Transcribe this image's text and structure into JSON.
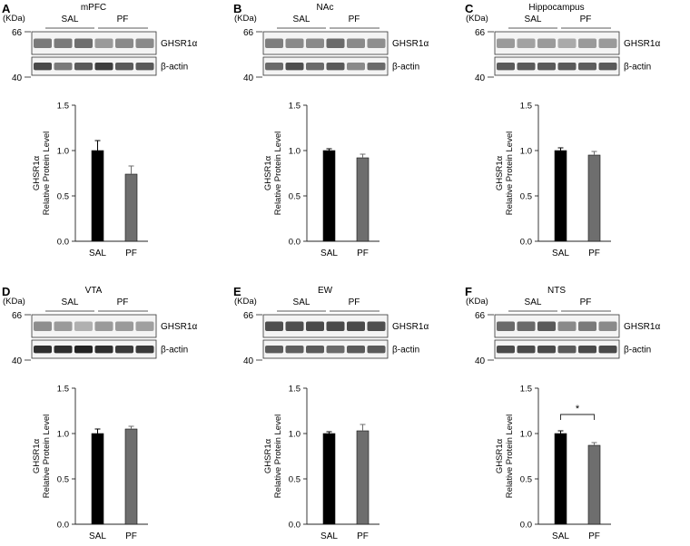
{
  "panels": [
    {
      "letter": "A",
      "region": "mPFC",
      "blot_lanes": {
        "ghsr": [
          "#7a7a7a",
          "#7a7a7a",
          "#6e6e6e",
          "#9a9a9a",
          "#8a8a8a",
          "#8a8a8a"
        ],
        "actin": [
          "#4a4a4a",
          "#7a7a7a",
          "#5a5a5a",
          "#3e3e3e",
          "#5a5a5a",
          "#5a5a5a"
        ]
      }
    },
    {
      "letter": "B",
      "region": "NAc",
      "blot_lanes": {
        "ghsr": [
          "#7e7e7e",
          "#8a8a8a",
          "#8a8a8a",
          "#6a6a6a",
          "#8a8a8a",
          "#8e8e8e"
        ],
        "actin": [
          "#6a6a6a",
          "#4e4e4e",
          "#6a6a6a",
          "#5a5a5a",
          "#8a8a8a",
          "#6a6a6a"
        ]
      }
    },
    {
      "letter": "C",
      "region": "Hippocampus",
      "blot_lanes": {
        "ghsr": [
          "#9a9a9a",
          "#a2a2a2",
          "#9a9a9a",
          "#aaaaaa",
          "#9a9a9a",
          "#9a9a9a"
        ],
        "actin": [
          "#5a5a5a",
          "#5a5a5a",
          "#5a5a5a",
          "#5a5a5a",
          "#5e5e5e",
          "#5a5a5a"
        ]
      }
    },
    {
      "letter": "D",
      "region": "VTA",
      "blot_lanes": {
        "ghsr": [
          "#8e8e8e",
          "#9a9a9a",
          "#b0b0b0",
          "#9a9a9a",
          "#9a9a9a",
          "#a0a0a0"
        ],
        "actin": [
          "#2e2e2e",
          "#2e2e2e",
          "#222222",
          "#2e2e2e",
          "#3a3a3a",
          "#3a3a3a"
        ]
      }
    },
    {
      "letter": "E",
      "region": "EW",
      "blot_lanes": {
        "ghsr": [
          "#4e4e4e",
          "#4e4e4e",
          "#4a4a4a",
          "#4a4a4a",
          "#4a4a4a",
          "#4e4e4e"
        ],
        "actin": [
          "#5a5a5a",
          "#5e5e5e",
          "#5a5a5a",
          "#6a6a6a",
          "#5a5a5a",
          "#5a5a5a"
        ]
      }
    },
    {
      "letter": "F",
      "region": "NTS",
      "blot_lanes": {
        "ghsr": [
          "#6a6a6a",
          "#6a6a6a",
          "#5a5a5a",
          "#8a8a8a",
          "#7a7a7a",
          "#8a8a8a"
        ],
        "actin": [
          "#4a4a4a",
          "#4a4a4a",
          "#4a4a4a",
          "#5a5a5a",
          "#4a4a4a",
          "#4a4a4a"
        ]
      }
    }
  ],
  "blot_labels": {
    "kda": "(KDa)",
    "mw_high": "66",
    "mw_low": "40",
    "band_top": "GHSR1α",
    "band_bottom": "β-actin",
    "group_1": "SAL",
    "group_2": "PF"
  },
  "colors": {
    "SAL": "#000000",
    "PF": "#6e6e6e"
  },
  "chart_data": [
    {
      "type": "bar",
      "title": "mPFC",
      "categories": [
        "SAL",
        "PF"
      ],
      "values": [
        1.0,
        0.74
      ],
      "errors": [
        0.11,
        0.09
      ],
      "ylabel": [
        "GHSR1α",
        "Relative Protein Level"
      ],
      "ylim": [
        0,
        1.5
      ],
      "yticks": [
        "0.0",
        "0.5",
        "1.0",
        "1.5"
      ],
      "significance": null
    },
    {
      "type": "bar",
      "title": "NAc",
      "categories": [
        "SAL",
        "PF"
      ],
      "values": [
        1.0,
        0.92
      ],
      "errors": [
        0.02,
        0.04
      ],
      "ylabel": [
        "GHSR1α",
        "Relative Protein Level"
      ],
      "ylim": [
        0,
        1.5
      ],
      "yticks": [
        "0.0",
        "0.5",
        "1.0",
        "1.5"
      ],
      "significance": null
    },
    {
      "type": "bar",
      "title": "Hippocampus",
      "categories": [
        "SAL",
        "PF"
      ],
      "values": [
        1.0,
        0.95
      ],
      "errors": [
        0.03,
        0.04
      ],
      "ylabel": [
        "GHSR1α",
        "Relative Protein Level"
      ],
      "ylim": [
        0,
        1.5
      ],
      "yticks": [
        "0.0",
        "0.5",
        "1.0",
        "1.5"
      ],
      "significance": null
    },
    {
      "type": "bar",
      "title": "VTA",
      "categories": [
        "SAL",
        "PF"
      ],
      "values": [
        1.0,
        1.05
      ],
      "errors": [
        0.05,
        0.03
      ],
      "ylabel": [
        "GHSR1α",
        "Relative Protein Level"
      ],
      "ylim": [
        0,
        1.5
      ],
      "yticks": [
        "0.0",
        "0.5",
        "1.0",
        "1.5"
      ],
      "significance": null
    },
    {
      "type": "bar",
      "title": "EW",
      "categories": [
        "SAL",
        "PF"
      ],
      "values": [
        1.0,
        1.03
      ],
      "errors": [
        0.02,
        0.07
      ],
      "ylabel": [
        "GHSR1α",
        "Relative Protein Level"
      ],
      "ylim": [
        0,
        1.5
      ],
      "yticks": [
        "0.0",
        "0.5",
        "1.0",
        "1.5"
      ],
      "significance": null
    },
    {
      "type": "bar",
      "title": "NTS",
      "categories": [
        "SAL",
        "PF"
      ],
      "values": [
        1.0,
        0.87
      ],
      "errors": [
        0.03,
        0.03
      ],
      "ylabel": [
        "GHSR1α",
        "Relative Protein Level"
      ],
      "ylim": [
        0,
        1.5
      ],
      "yticks": [
        "0.0",
        "0.5",
        "1.0",
        "1.5"
      ],
      "significance": "*"
    }
  ]
}
